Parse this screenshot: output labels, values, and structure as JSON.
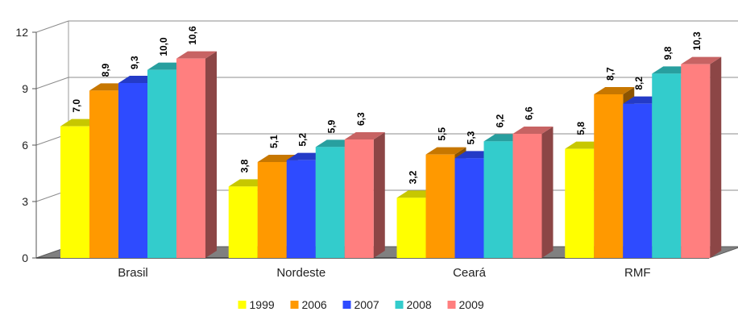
{
  "chart_data": {
    "type": "bar",
    "style": "3d-clustered-column",
    "categories": [
      "Brasil",
      "Nordeste",
      "Ceará",
      "RMF"
    ],
    "series": [
      {
        "name": "1999",
        "color": "#ffff00",
        "values": [
          7.0,
          3.8,
          3.2,
          5.8
        ],
        "labels": [
          "7,0",
          "3,8",
          "3,2",
          "5,8"
        ]
      },
      {
        "name": "2006",
        "color": "#ff9900",
        "values": [
          8.9,
          5.1,
          5.5,
          8.7
        ],
        "labels": [
          "8,9",
          "5,1",
          "5,5",
          "8,7"
        ]
      },
      {
        "name": "2007",
        "color": "#2e4bff",
        "values": [
          9.3,
          5.2,
          5.3,
          8.2
        ],
        "labels": [
          "9,3",
          "5,2",
          "5,3",
          "8,2"
        ]
      },
      {
        "name": "2008",
        "color": "#33cccc",
        "values": [
          10.0,
          5.9,
          6.2,
          9.8
        ],
        "labels": [
          "10,0",
          "5,9",
          "6,2",
          "9,8"
        ]
      },
      {
        "name": "2009",
        "color": "#ff7f7f",
        "values": [
          10.6,
          6.3,
          6.6,
          10.3
        ],
        "labels": [
          "10,6",
          "6,3",
          "6,6",
          "10,3"
        ]
      }
    ],
    "y_ticks": [
      "0",
      "3",
      "6",
      "9",
      "12"
    ],
    "ylim": [
      0,
      12
    ],
    "grid": true,
    "legend_position": "bottom-center",
    "title": "",
    "xlabel": "",
    "ylabel": ""
  }
}
